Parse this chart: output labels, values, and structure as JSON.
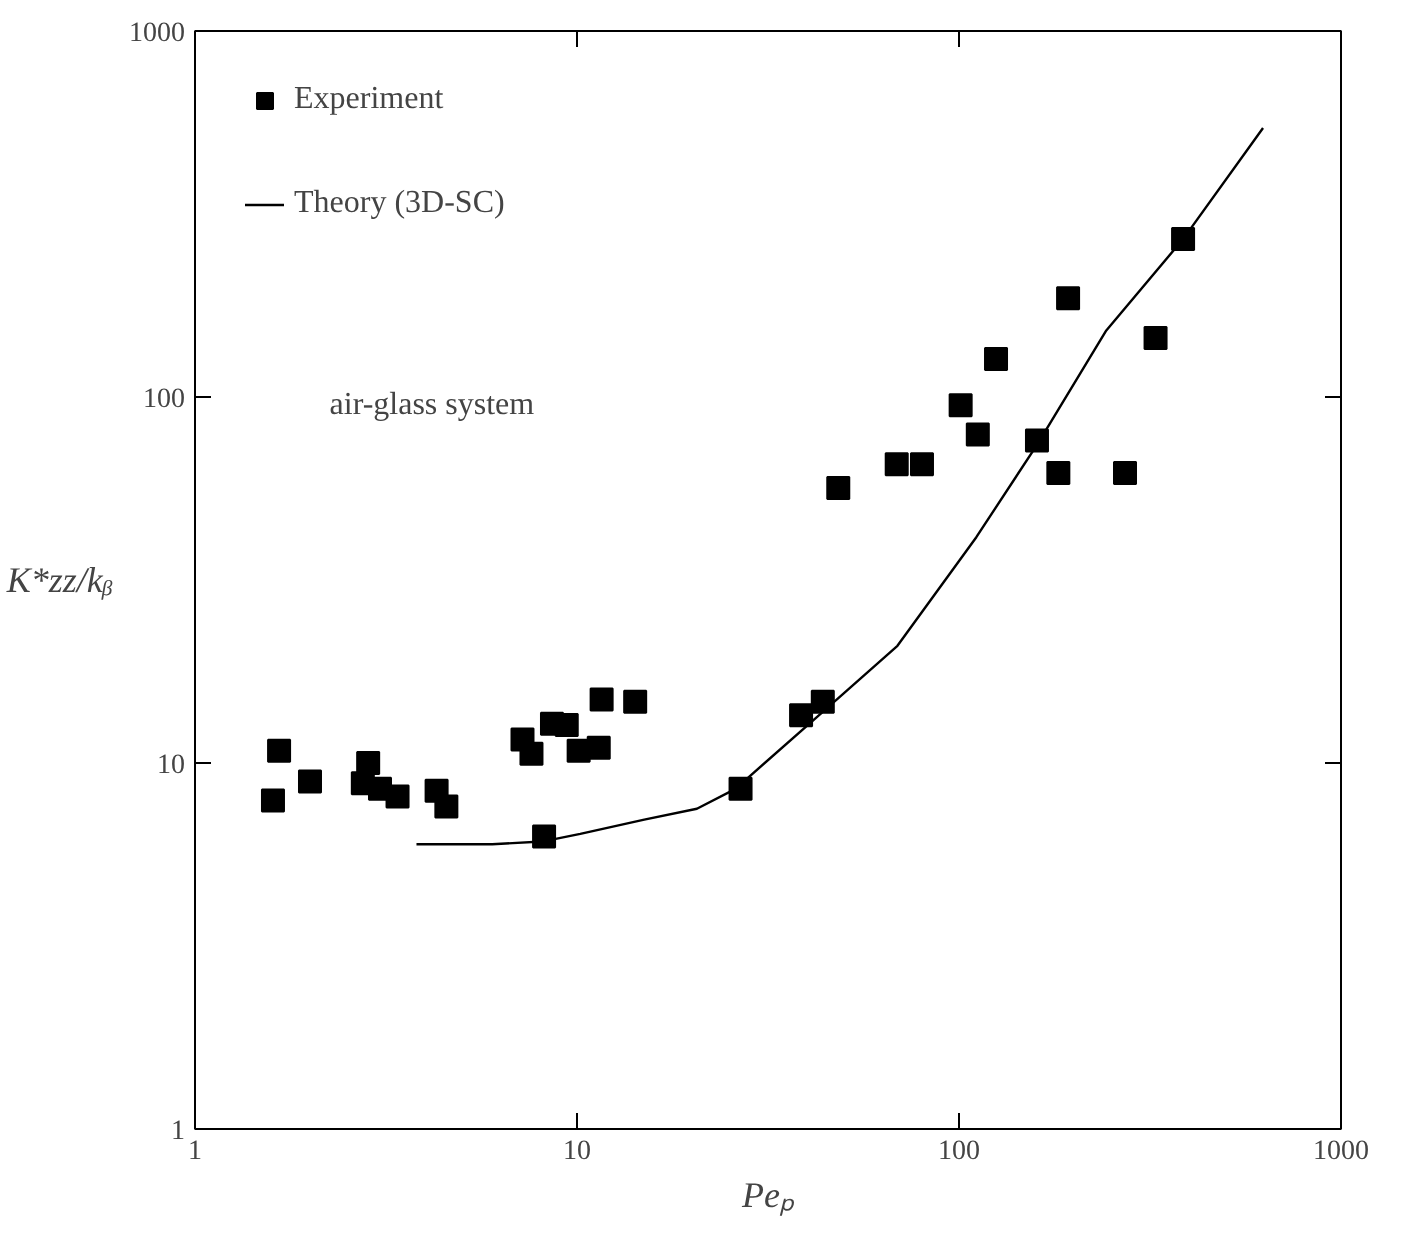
{
  "chart_data": {
    "type": "scatter",
    "log": "xy",
    "xlabel": "Peₚ",
    "ylabel": "K*zz/kᵦ",
    "xlim": [
      1,
      1000
    ],
    "ylim": [
      1,
      1000
    ],
    "xticks": [
      1,
      10,
      100,
      1000
    ],
    "yticks": [
      1,
      10,
      100,
      1000
    ],
    "grid": false,
    "legend": "top left",
    "marker": "square",
    "annotations": [
      "air-glass system"
    ],
    "series": [
      {
        "name": "Experiment",
        "color": "#000000",
        "x": [
          1.66,
          1.6,
          2.0,
          2.84,
          2.75,
          3.05,
          3.39,
          4.29,
          4.55,
          7.2,
          7.6,
          8.6,
          9.4,
          10.1,
          11.4,
          11.6,
          14.2,
          8.2,
          26.8,
          38.6,
          44,
          48.3,
          68.7,
          80,
          101,
          112,
          125,
          160,
          182,
          193,
          272,
          327,
          386
        ],
        "values": [
          10.8,
          7.9,
          8.9,
          10.0,
          8.8,
          8.5,
          8.1,
          8.4,
          7.6,
          11.6,
          10.6,
          12.8,
          12.7,
          10.8,
          11.0,
          14.9,
          14.7,
          6.3,
          8.5,
          13.5,
          14.7,
          56.4,
          65.5,
          65.5,
          95,
          79,
          127,
          76,
          62,
          186,
          62,
          145,
          270
        ]
      },
      {
        "name": "Theory (3D-SC)",
        "type": "line",
        "color": "#000000",
        "marker": "none",
        "x": [
          3.8,
          6,
          8.1,
          10.2,
          15,
          20.6,
          26,
          44,
          69,
          111,
          160,
          243,
          386,
          625
        ],
        "values": [
          6.0,
          6.0,
          6.1,
          6.4,
          7.0,
          7.5,
          8.5,
          13.8,
          20.9,
          41.4,
          74,
          152,
          270,
          543
        ]
      }
    ]
  }
}
